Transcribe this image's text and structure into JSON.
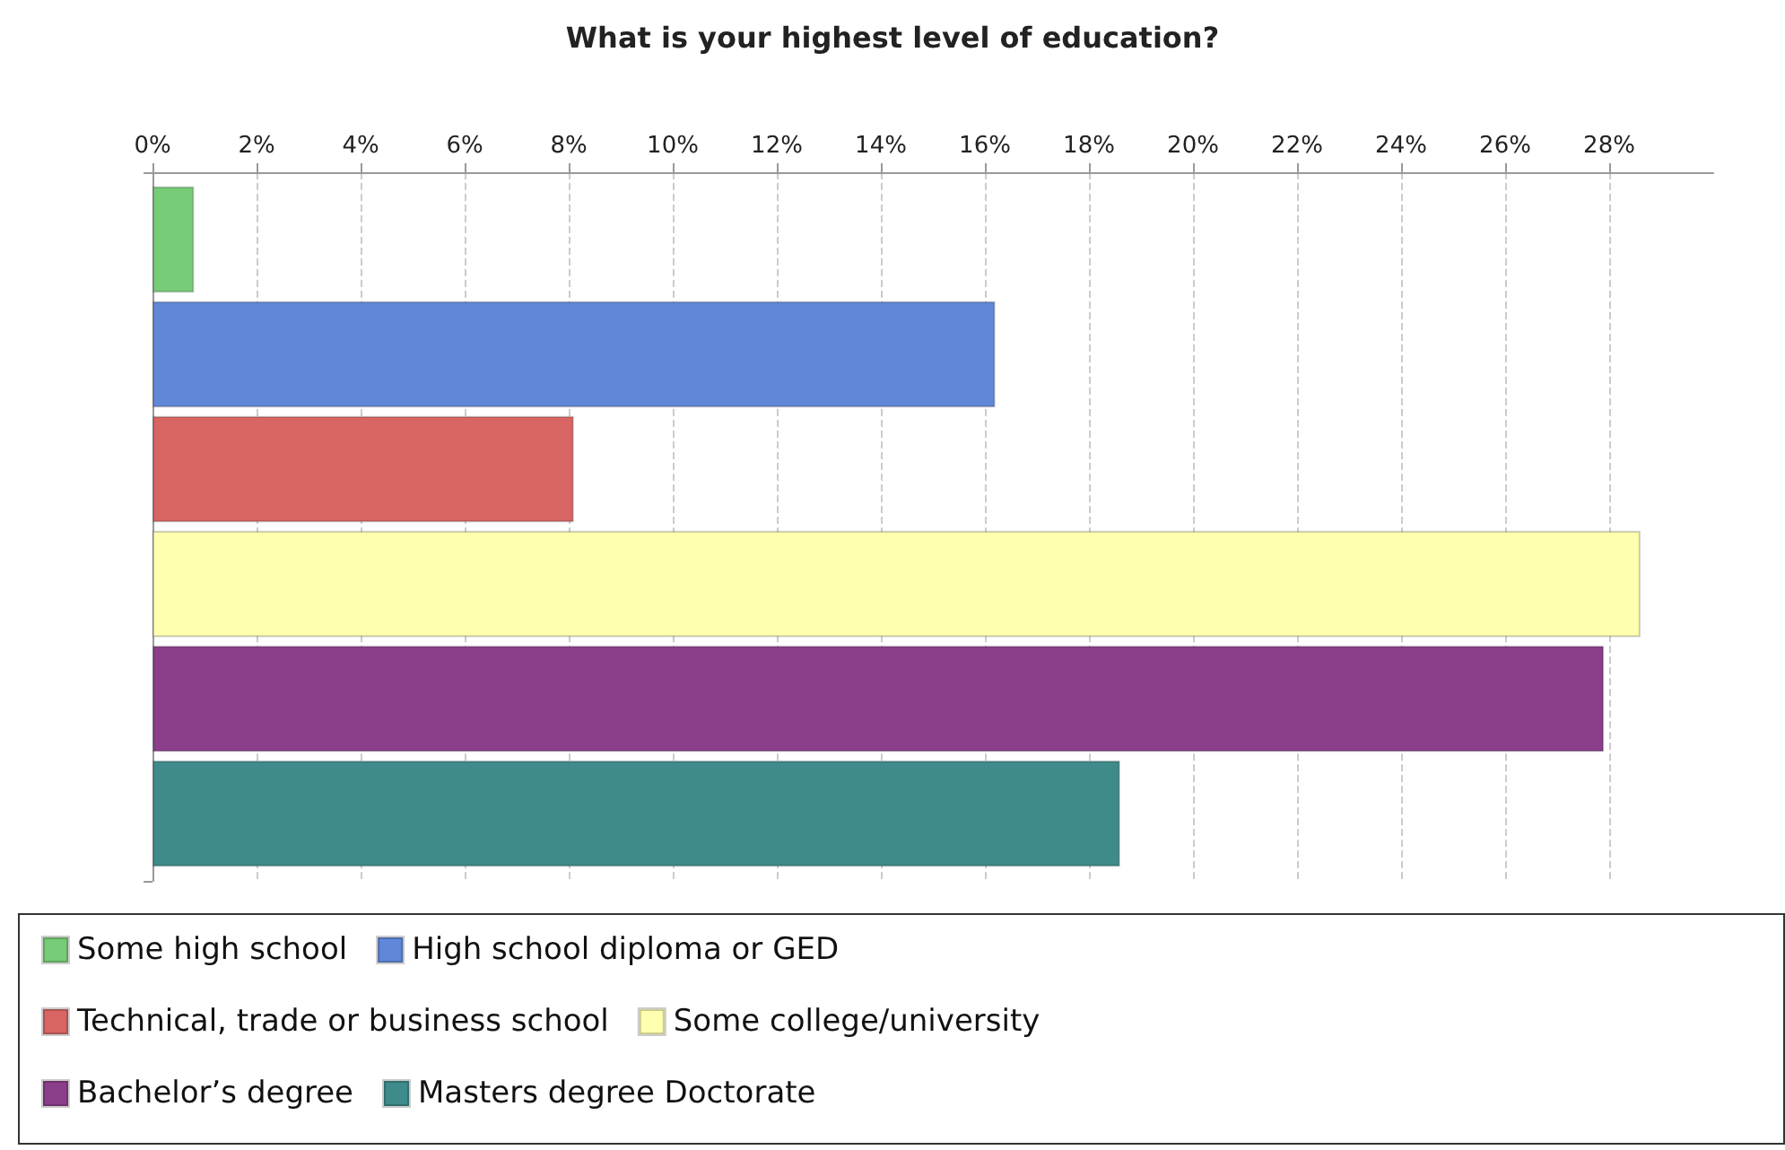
{
  "chart_data": {
    "type": "bar",
    "orientation": "horizontal",
    "title": "What is your highest level of education?",
    "categories": [
      null
    ],
    "series": [
      {
        "name": "Some high school",
        "color": "#77cc77",
        "values": [
          0.8
        ]
      },
      {
        "name": "High school diploma or GED",
        "color": "#6188d8",
        "values": [
          16.2
        ]
      },
      {
        "name": "Technical, trade or business school",
        "color": "#d86464",
        "values": [
          8.1
        ]
      },
      {
        "name": "Some college/university",
        "color": "#ffffb0",
        "values": [
          28.6
        ]
      },
      {
        "name": "Bachelor’s degree",
        "color": "#8b3e8a",
        "values": [
          27.9
        ]
      },
      {
        "name": "Masters degree Doctorate",
        "color": "#3f8a8a",
        "values": [
          18.6
        ]
      }
    ],
    "xlim": [
      0,
      30
    ],
    "xticks": [
      {
        "value": 0,
        "label": "0%"
      },
      {
        "value": 2,
        "label": "2%"
      },
      {
        "value": 4,
        "label": "4%"
      },
      {
        "value": 6,
        "label": "6%"
      },
      {
        "value": 8,
        "label": "8%"
      },
      {
        "value": 10,
        "label": "10%"
      },
      {
        "value": 12,
        "label": "12%"
      },
      {
        "value": 14,
        "label": "14%"
      },
      {
        "value": 16,
        "label": "16%"
      },
      {
        "value": 18,
        "label": "18%"
      },
      {
        "value": 20,
        "label": "20%"
      },
      {
        "value": 22,
        "label": "22%"
      },
      {
        "value": 24,
        "label": "24%"
      },
      {
        "value": 26,
        "label": "26%"
      },
      {
        "value": 28,
        "label": "28%"
      }
    ],
    "grid": "x",
    "legend": "bottom"
  }
}
